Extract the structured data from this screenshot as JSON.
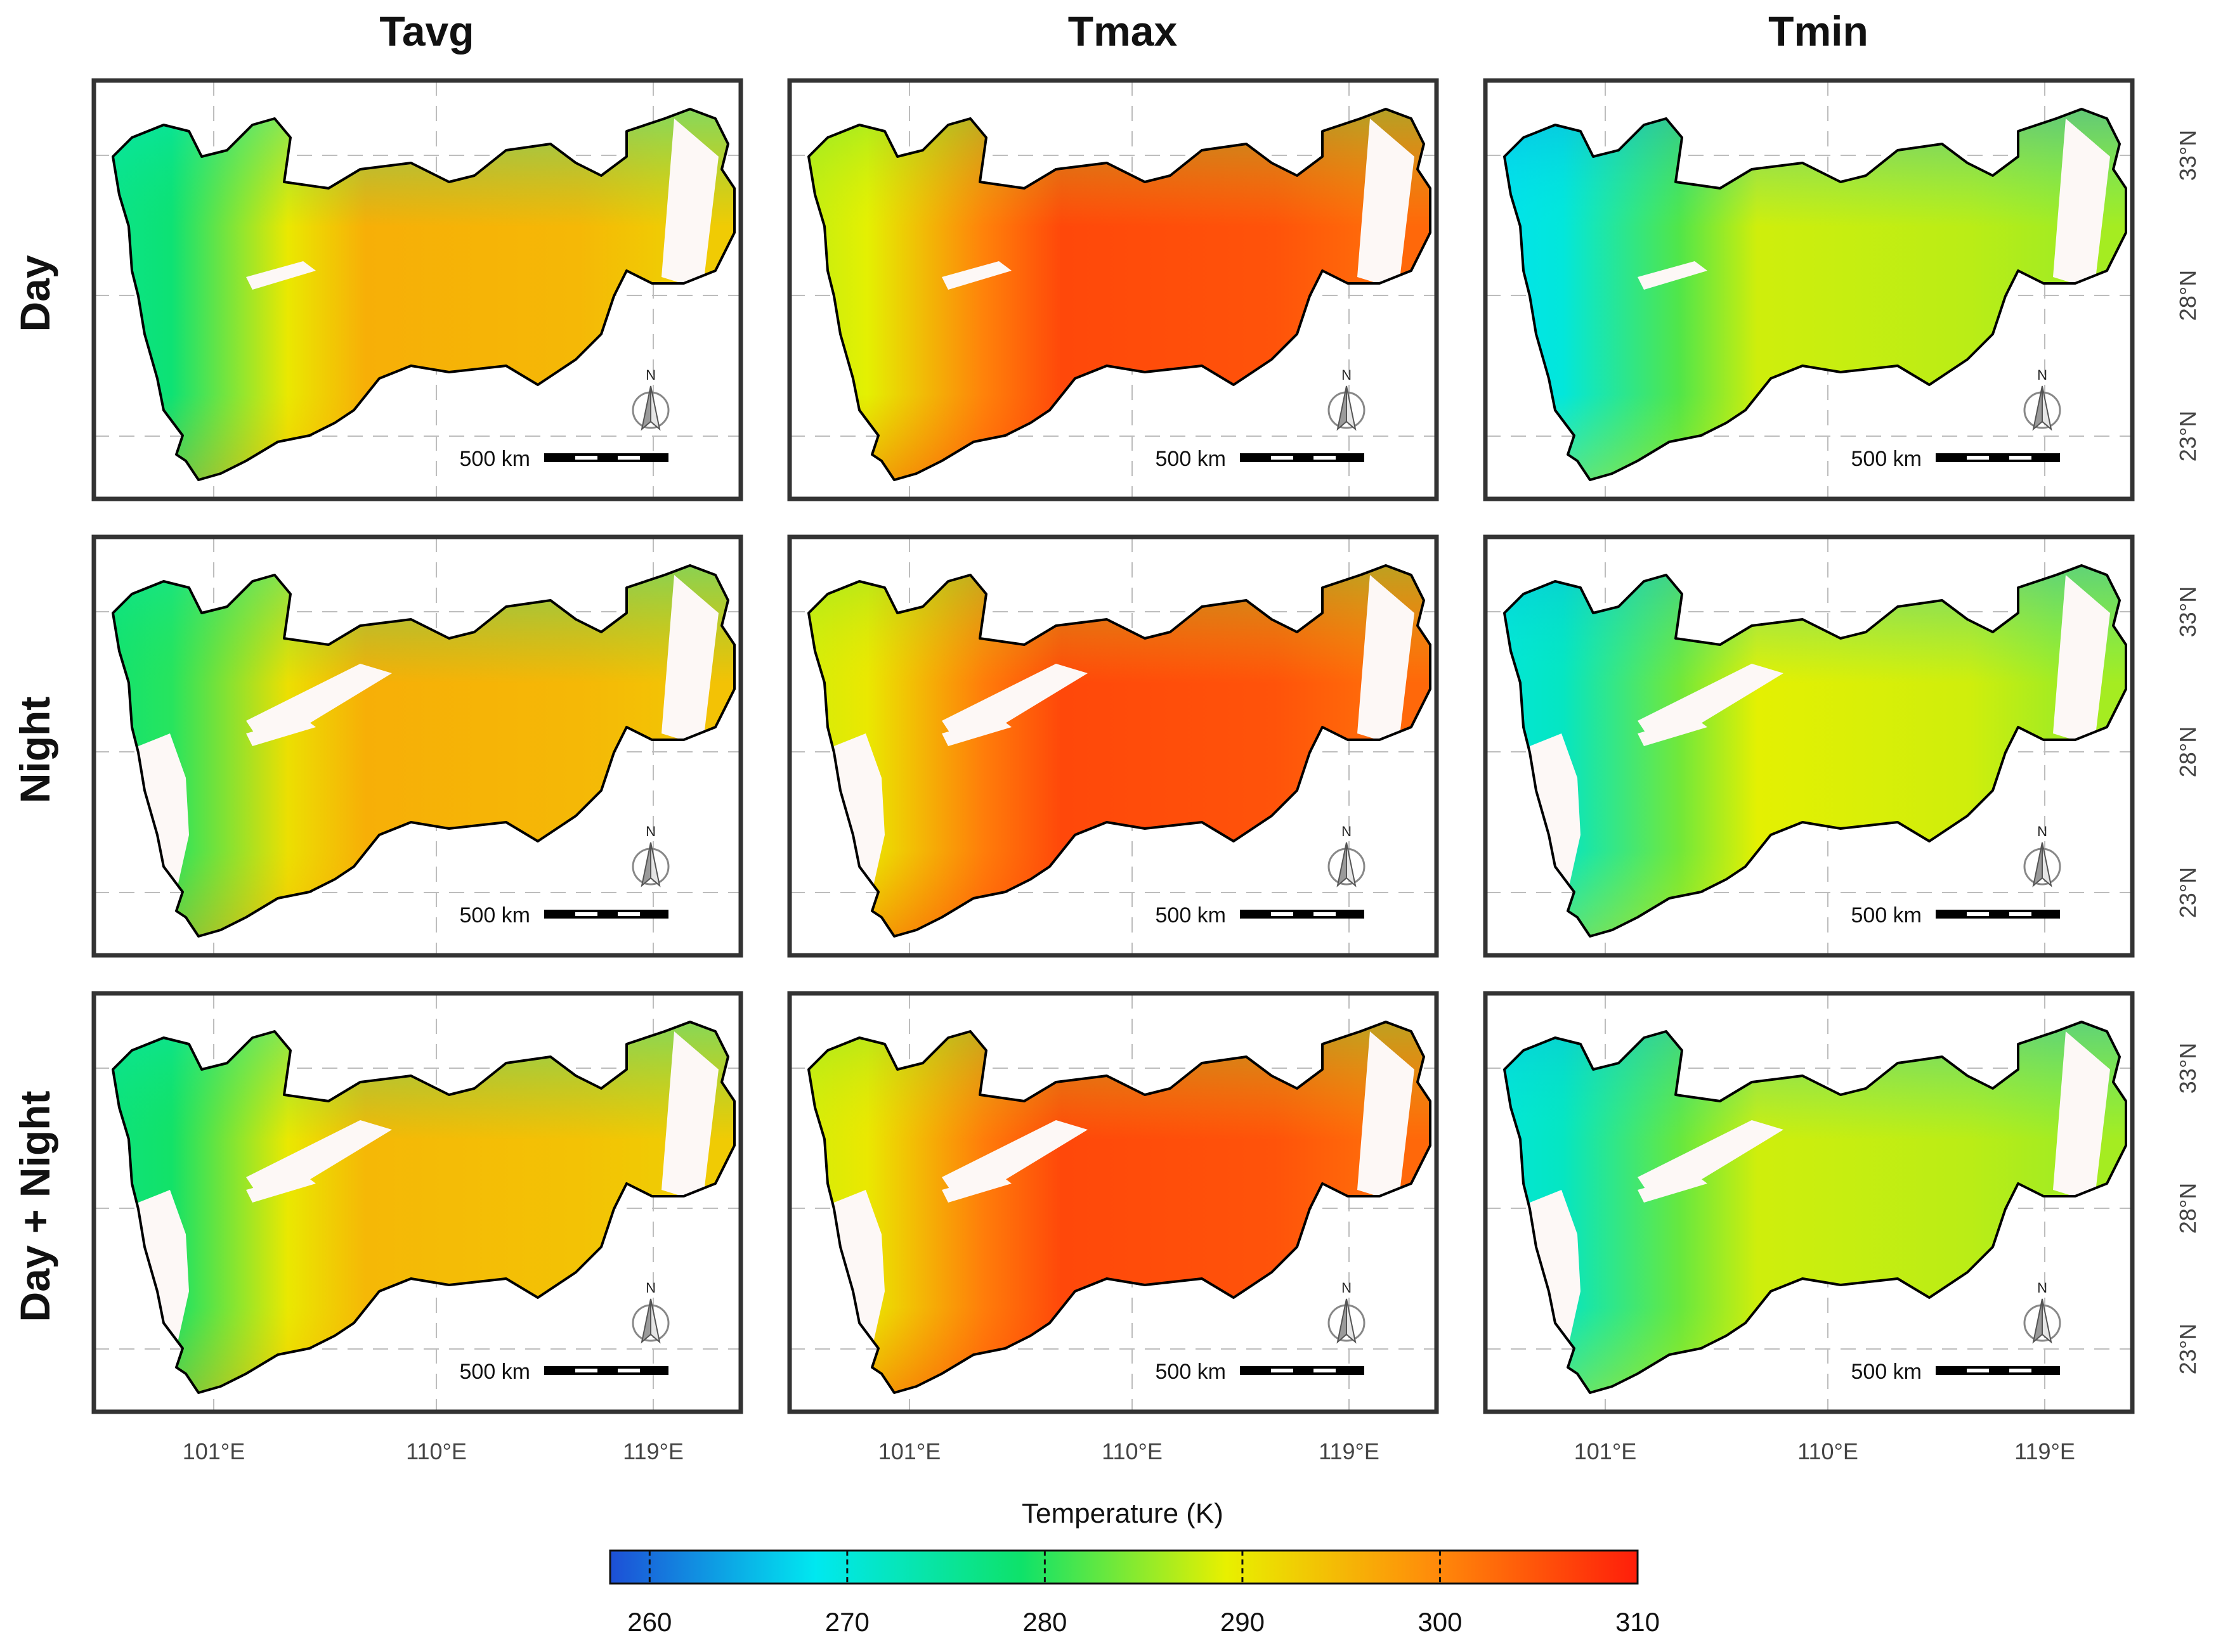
{
  "chart_data": {
    "type": "heatmap",
    "title": "",
    "columns": [
      "Tavg",
      "Tmax",
      "Tmin"
    ],
    "rows": [
      "Day",
      "Night",
      "Day + Night"
    ],
    "x_ticks": [
      "101°E",
      "110°E",
      "119°E"
    ],
    "y_ticks": [
      "33°N",
      "28°N",
      "23°N"
    ],
    "scale_bar_label": "500 km",
    "north_label": "N",
    "colorbar": {
      "title": "Temperature (K)",
      "min": 258,
      "max": 310,
      "ticks": [
        260,
        270,
        280,
        290,
        300,
        310
      ],
      "tick_labels": [
        "260",
        "270",
        "280",
        "290",
        "300",
        "310"
      ],
      "colors": [
        "#1d4fd6",
        "#00e8f0",
        "#0ee26a",
        "#e8f000",
        "#ff8c0a",
        "#ff1e0a"
      ]
    },
    "panels": [
      {
        "row": "Day",
        "column": "Tavg",
        "west_temp": 276,
        "center_temp": 296,
        "east_temp": 293
      },
      {
        "row": "Day",
        "column": "Tmax",
        "west_temp": 287,
        "center_temp": 306,
        "east_temp": 303
      },
      {
        "row": "Day",
        "column": "Tmin",
        "west_temp": 268,
        "center_temp": 288,
        "east_temp": 286
      },
      {
        "row": "Night",
        "column": "Tavg",
        "west_temp": 278,
        "center_temp": 296,
        "east_temp": 294
      },
      {
        "row": "Night",
        "column": "Tmax",
        "west_temp": 288,
        "center_temp": 306,
        "east_temp": 303
      },
      {
        "row": "Night",
        "column": "Tmin",
        "west_temp": 270,
        "center_temp": 289,
        "east_temp": 286
      },
      {
        "row": "Day + Night",
        "column": "Tavg",
        "west_temp": 277,
        "center_temp": 295,
        "east_temp": 293
      },
      {
        "row": "Day + Night",
        "column": "Tmax",
        "west_temp": 288,
        "center_temp": 306,
        "east_temp": 303
      },
      {
        "row": "Day + Night",
        "column": "Tmin",
        "west_temp": 270,
        "center_temp": 288,
        "east_temp": 286
      }
    ]
  }
}
